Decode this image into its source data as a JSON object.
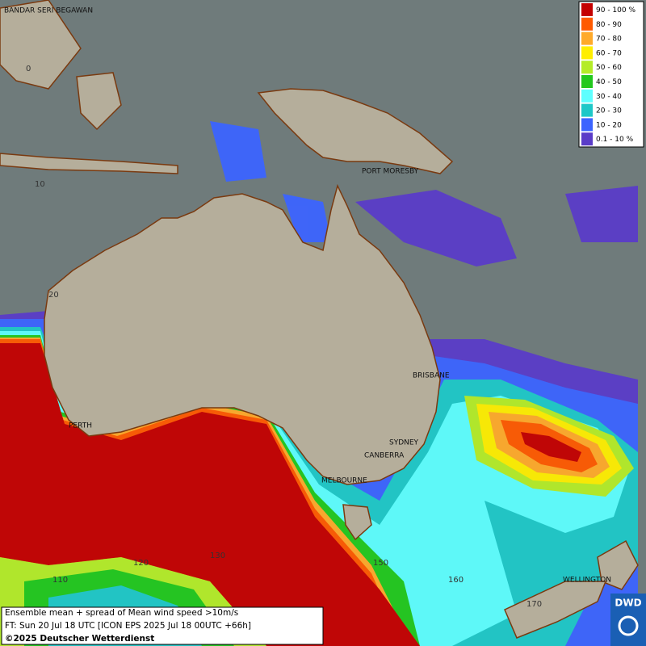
{
  "legend": {
    "items": [
      {
        "label": "90 - 100 %",
        "color": "#c40000"
      },
      {
        "label": "80 - 90",
        "color": "#ff5a00"
      },
      {
        "label": "70 - 80",
        "color": "#ffaa2a"
      },
      {
        "label": "60 - 70",
        "color": "#ffee00"
      },
      {
        "label": "50 - 60",
        "color": "#b4ec28"
      },
      {
        "label": "40 - 50",
        "color": "#22c81e"
      },
      {
        "label": "30 - 40",
        "color": "#5effff"
      },
      {
        "label": "20 - 30",
        "color": "#1ec8c8"
      },
      {
        "label": "10 - 20",
        "color": "#3c64ff"
      },
      {
        "label": "0.1 - 10 %",
        "color": "#5a3cc8"
      }
    ]
  },
  "cities": [
    "BANDAR SERI BEGAWAN",
    "PORT MORESBY",
    "BRISBANE",
    "SYDNEY",
    "CANBERRA",
    "MELBOURNE",
    "PERTH",
    "WELLINGTON"
  ],
  "lat_labels": [
    0,
    10,
    20
  ],
  "lon_labels": [
    110,
    120,
    130,
    150,
    160,
    170
  ],
  "caption": {
    "lines": [
      "Ensemble mean + spread of Mean wind speed >10m/s",
      "FT: Sun 20 Jul 18 UTC [ICON EPS 2025 Jul 18 00UTC +66h]",
      "©2025 Deutscher Wetterdienst"
    ]
  },
  "logo": "DWD"
}
